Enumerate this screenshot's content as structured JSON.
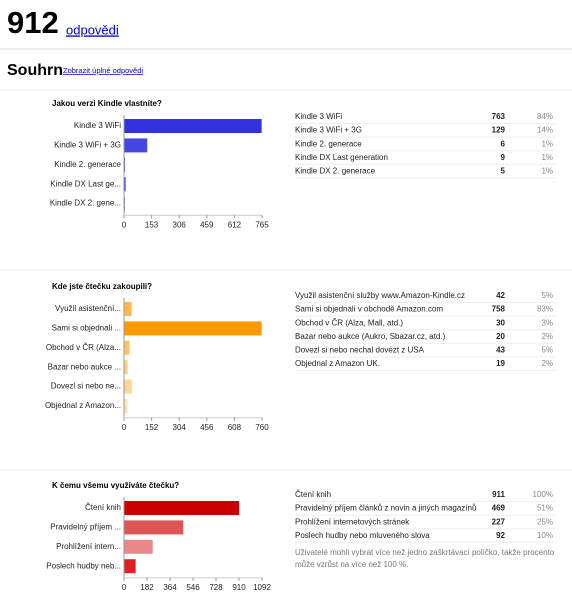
{
  "header": {
    "count": 912,
    "count_label": "odpovědi"
  },
  "summary": {
    "title": "Souhrn",
    "link": "Zobrazit úplné odpovědi"
  },
  "questions": [
    {
      "title": "Jakou verzi Kindle vlastníte?",
      "chart": {
        "type": "bar",
        "orientation": "horizontal",
        "categories": [
          "Kindle 3 WiFi",
          "Kindle 3 WiFi + 3G",
          "Kindle 2. generace",
          "Kindle DX Last ge...",
          "Kindle DX 2. gene..."
        ],
        "values": [
          763,
          129,
          6,
          9,
          5
        ],
        "colors": [
          "#3333dd",
          "#4646e0",
          "#5a5ae4",
          "#3c3cde",
          "#6e6ee8"
        ],
        "xlim": [
          0,
          765
        ],
        "xticks": [
          0,
          153,
          306,
          459,
          612,
          765
        ]
      },
      "table": {
        "rows": [
          [
            "Kindle 3 WiFi",
            "763",
            "84%"
          ],
          [
            "Kindle 3 WiFi + 3G",
            "129",
            "14%"
          ],
          [
            "Kindle 2. generace",
            "6",
            "1%"
          ],
          [
            "Kindle DX Last generation",
            "9",
            "1%"
          ],
          [
            "Kindle DX 2. generace",
            "5",
            "1%"
          ]
        ]
      }
    },
    {
      "title": "Kde jste čtečku zakoupili?",
      "chart": {
        "type": "bar",
        "orientation": "horizontal",
        "categories": [
          "Využil asistenční...",
          "Sami si objednali ...",
          "Obchod v ČR (Alza...",
          "Bazar nebo aukce ...",
          "Dovezl si nebo ne...",
          "Objednal z Amazon..."
        ],
        "values": [
          42,
          758,
          30,
          20,
          43,
          19
        ],
        "colors": [
          "#ffb84d",
          "#ff9900",
          "#ffc266",
          "#ffcc80",
          "#ffd699",
          "#ffe0b3"
        ],
        "xlim": [
          0,
          760
        ],
        "xticks": [
          0,
          152,
          304,
          456,
          608,
          760
        ]
      },
      "table": {
        "rows": [
          [
            "Využil asistenční služby www.Amazon-Kindle.cz",
            "42",
            "5%"
          ],
          [
            "Sami si objednali v obchodě Amazon.com",
            "758",
            "83%"
          ],
          [
            "Obchod v ČR (Alza, Mall, atd.)",
            "30",
            "3%"
          ],
          [
            "Bazar nebo aukce (Aukro, Sbazar.cz, atd.)",
            "20",
            "2%"
          ],
          [
            "Dovezl si nebo nechal dovézt z USA",
            "43",
            "5%"
          ],
          [
            "Objednal z Amazon UK.",
            "19",
            "2%"
          ]
        ]
      }
    },
    {
      "title": "K čemu všemu využíváte čtečku?",
      "chart": {
        "type": "bar",
        "orientation": "horizontal",
        "categories": [
          "Čtení knih",
          "Pravidelný příjem ...",
          "Prohlížení intern...",
          "Poslech hudby neb..."
        ],
        "values": [
          911,
          469,
          227,
          92
        ],
        "colors": [
          "#cc0000",
          "#dd5555",
          "#e88888",
          "#dd2222"
        ],
        "xlim": [
          0,
          1092
        ],
        "xticks": [
          0,
          182,
          364,
          546,
          728,
          910,
          1092
        ]
      },
      "table": {
        "rows": [
          [
            "Čtení knih",
            "911",
            "100%"
          ],
          [
            "Pravidelný příjem článků z novin a jiných magazínů",
            "469",
            "51%"
          ],
          [
            "Prohlížení internetových stránek",
            "227",
            "25%"
          ],
          [
            "Poslech hudby nebo mluveného slova",
            "92",
            "10%"
          ]
        ]
      },
      "note": "Uživatelé mohli vybrat více než jedno zaškrtávací políčko, takže procento může vzrůst na více než 100 %."
    }
  ]
}
